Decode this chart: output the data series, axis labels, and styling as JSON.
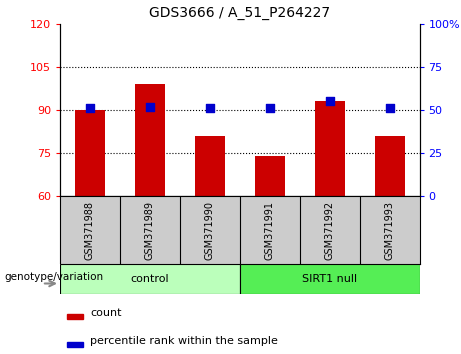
{
  "title": "GDS3666 / A_51_P264227",
  "samples": [
    "GSM371988",
    "GSM371989",
    "GSM371990",
    "GSM371991",
    "GSM371992",
    "GSM371993"
  ],
  "count_values": [
    90,
    99,
    81,
    74,
    93,
    81
  ],
  "percentile_values": [
    51,
    52,
    51,
    51,
    55,
    51
  ],
  "ylim_left": [
    60,
    120
  ],
  "ylim_right": [
    0,
    100
  ],
  "yticks_left": [
    60,
    75,
    90,
    105,
    120
  ],
  "yticks_right": [
    0,
    25,
    50,
    75,
    100
  ],
  "ytick_labels_left": [
    "60",
    "75",
    "90",
    "105",
    "120"
  ],
  "ytick_labels_right": [
    "0",
    "25",
    "50",
    "75",
    "100%"
  ],
  "bar_color": "#cc0000",
  "dot_color": "#0000cc",
  "groups": [
    {
      "label": "control",
      "color": "#bbffbb"
    },
    {
      "label": "SIRT1 null",
      "color": "#55ee55"
    }
  ],
  "legend_count_label": "count",
  "legend_percentile_label": "percentile rank within the sample",
  "genotype_label": "genotype/variation",
  "tick_label_area_color": "#cccccc",
  "plot_bg_color": "#ffffff",
  "bar_width": 0.5,
  "dot_size": 30,
  "dot_marker": "s",
  "gridline_y": [
    75,
    90,
    105
  ],
  "gridline_style": ":",
  "gridline_color": "black",
  "gridline_lw": 0.8
}
